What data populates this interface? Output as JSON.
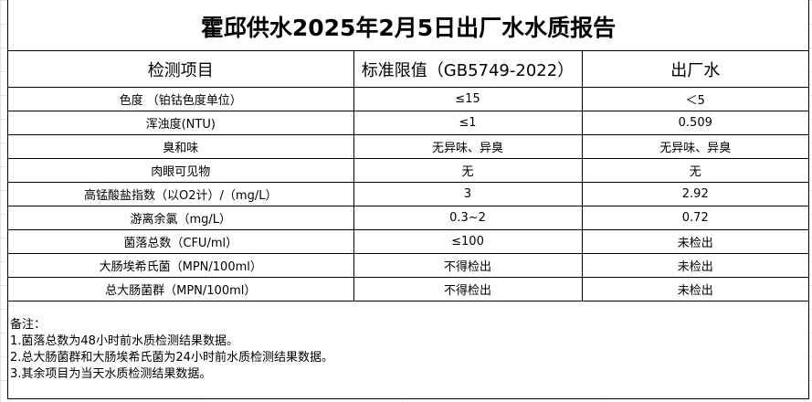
{
  "title": "霍邱供水2025年2月5日出厂水水质报告",
  "headers": [
    "检测项目",
    "标准限值（GB5749-2022）",
    "出厂水"
  ],
  "rows": [
    [
      "色度 （铂钴色度单位）",
      "≤15",
      "＜5"
    ],
    [
      "浑浊度(NTU)",
      "≤1",
      "0.509"
    ],
    [
      "臭和味",
      "无异味、异臭",
      "无异味、异臭"
    ],
    [
      "肉眼可见物",
      "无",
      "无"
    ],
    [
      "高锰酸盐指数（以O2计）/（mg/L）",
      "3",
      "2.92"
    ],
    [
      "游离余氯（mg/L）",
      "0.3~2",
      "0.72"
    ],
    [
      "菌落总数（CFU/ml）",
      "≤100",
      "未检出"
    ],
    [
      "大肠埃希氏菌（MPN/100ml）",
      "不得检出",
      "未检出"
    ],
    [
      "总大肠菌群（MPN/100ml）",
      "不得检出",
      "未检出"
    ]
  ],
  "notes": [
    "备注：",
    "1.菌落总数为48小时前水质检测结果数据。",
    "2.总大肠菌群和大肠埃希氏菌为24小时前水质检测结果数据。",
    "3.其余项目为当天水质检测结果数据。"
  ]
}
